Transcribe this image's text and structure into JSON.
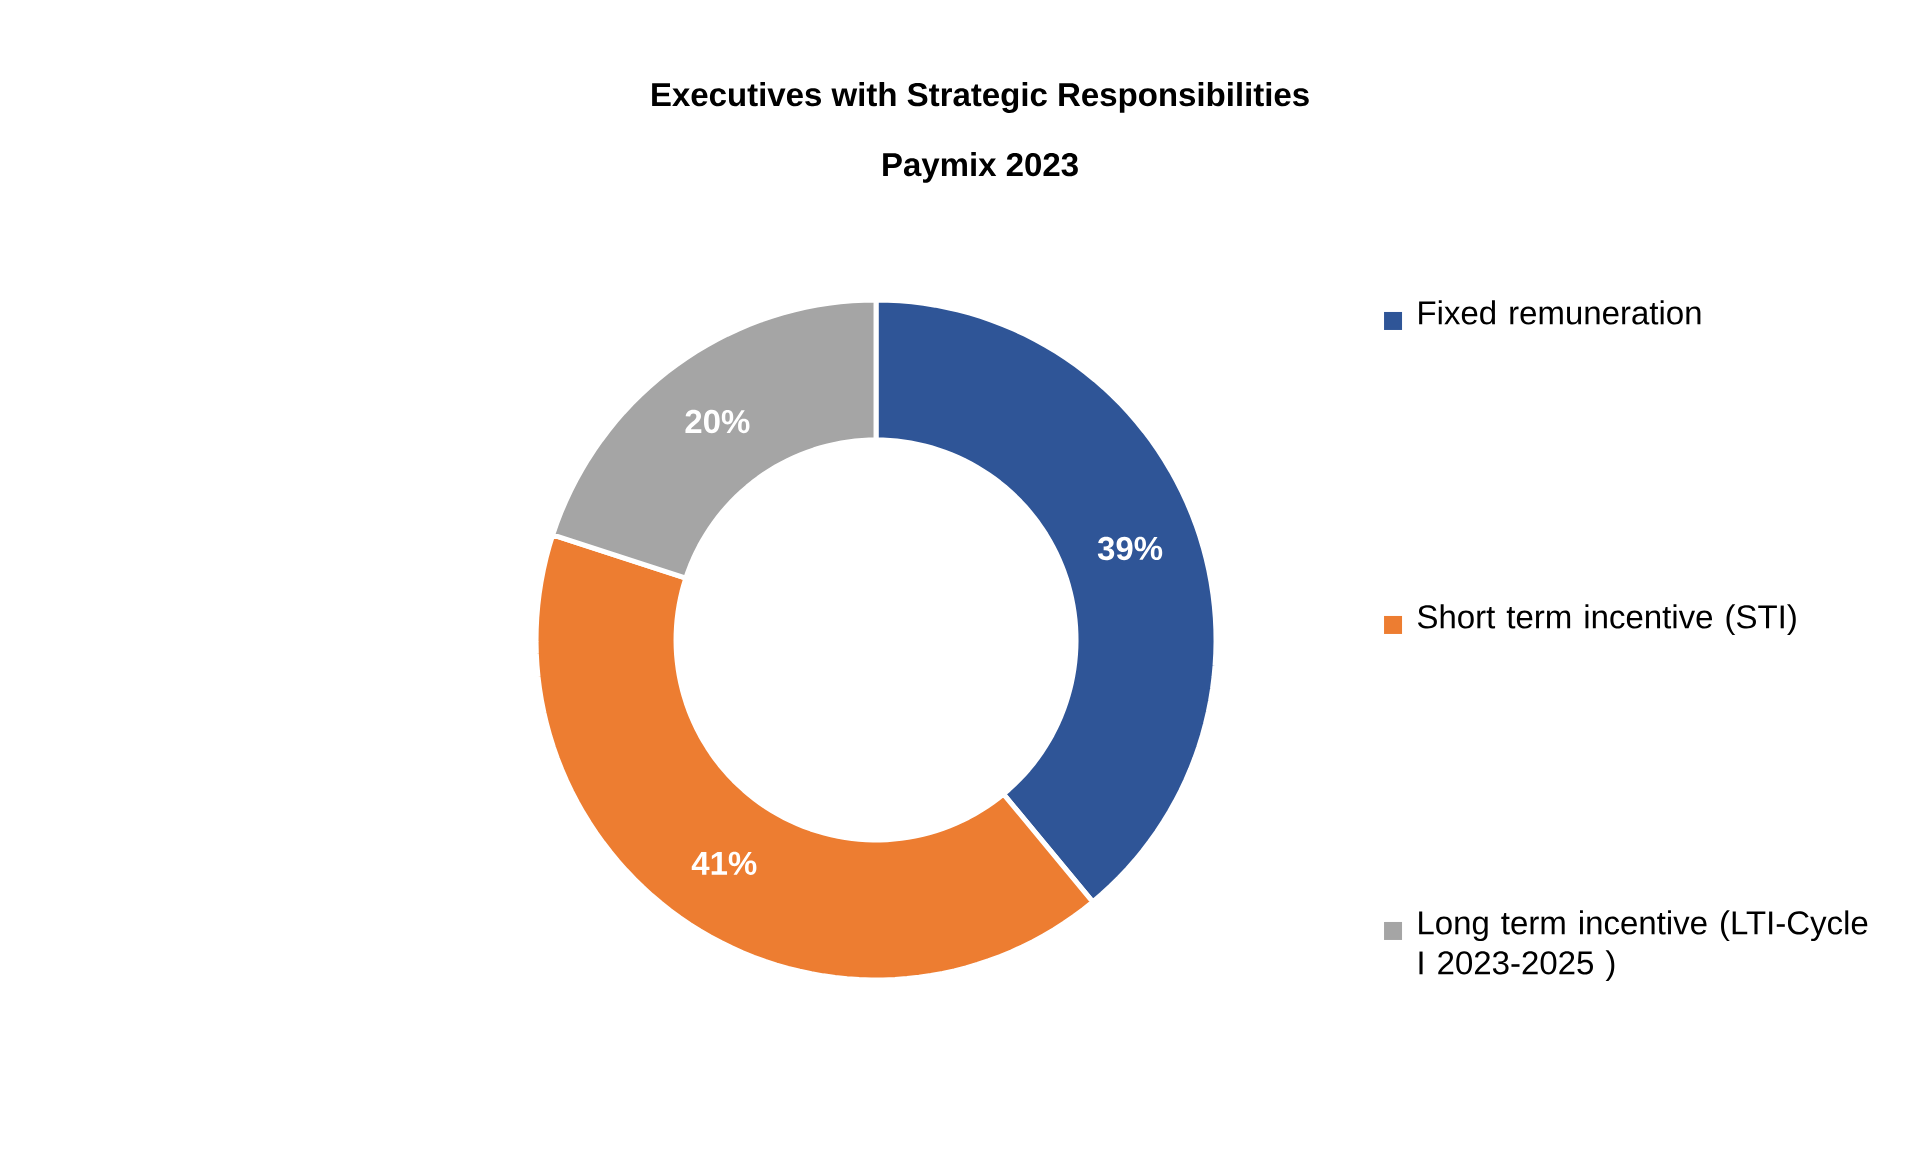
{
  "chart_data": {
    "type": "donut",
    "title": "Executives with Strategic Responsibilities",
    "subtitle": "Paymix 2023",
    "categories": [
      "Fixed remuneration",
      "Short term incentive (STI)",
      "Long term incentive (LTI-Cycle I 2023-2025 )"
    ],
    "values": [
      39,
      41,
      20
    ],
    "colors": [
      "#2f5597",
      "#ed7d31",
      "#a5a5a5"
    ],
    "value_labels": [
      "39%",
      "41%",
      "20%"
    ],
    "legend": "right"
  }
}
